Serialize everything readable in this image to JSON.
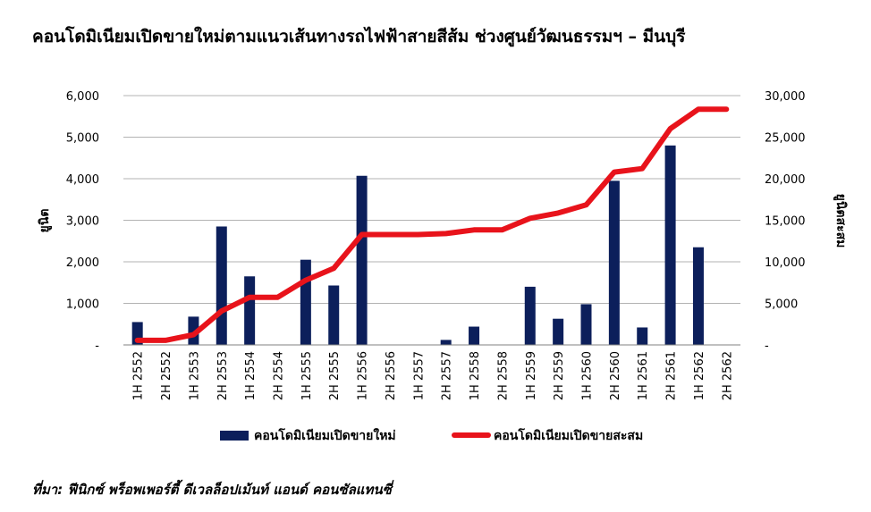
{
  "chart_data": {
    "type": "bar",
    "title": "คอนโดมิเนียมเปิดขายใหม่ตามแนวเส้นทางรถไฟฟ้าสายสีส้ม ช่วงศูนย์วัฒนธรรมฯ – มีนบุรี",
    "ylabel": "ยูนิต",
    "y2label": "ยูนิตสะสม",
    "ylim": [
      0,
      6000
    ],
    "y2lim": [
      0,
      30000
    ],
    "yticks": [
      "-",
      "1,000",
      "2,000",
      "3,000",
      "4,000",
      "5,000",
      "6,000"
    ],
    "y2ticks": [
      "-",
      "5,000",
      "10,000",
      "15,000",
      "20,000",
      "25,000",
      "30,000"
    ],
    "categories": [
      "1H 2552",
      "2H 2552",
      "1H 2553",
      "2H 2553",
      "1H 2554",
      "2H 2554",
      "1H 2555",
      "2H 2555",
      "1H 2556",
      "2H 2556",
      "1H 2557",
      "2H 2557",
      "1H 2558",
      "2H 2558",
      "1H 2559",
      "2H 2559",
      "1H 2560",
      "2H 2560",
      "1H 2561",
      "2H 2561",
      "1H 2562",
      "2H 2562"
    ],
    "series": [
      {
        "name": "คอนโดมิเนียมเปิดขายใหม่",
        "type": "bar",
        "axis": "left",
        "color": "#0c1f5b",
        "values": [
          550,
          0,
          680,
          2850,
          1650,
          0,
          2050,
          1430,
          4070,
          0,
          0,
          120,
          440,
          0,
          1400,
          630,
          980,
          3950,
          420,
          4800,
          2350,
          0
        ]
      },
      {
        "name": "คอนโดมิเนียมเปิดขายสะสม",
        "type": "line",
        "axis": "right",
        "color": "#e8131b",
        "values": [
          550,
          550,
          1230,
          4080,
          5730,
          5730,
          7780,
          9210,
          13280,
          13280,
          13280,
          13400,
          13840,
          13840,
          15240,
          15870,
          16850,
          20800,
          21220,
          26020,
          28370,
          28370
        ]
      }
    ],
    "legend_position": "bottom",
    "grid": true
  },
  "source": "ที่มา: ฟีนิกซ์ พร็อพเพอร์ตี้ ดีเวลล็อปเม้นท์ แอนด์ คอนซัลแทนซี่"
}
